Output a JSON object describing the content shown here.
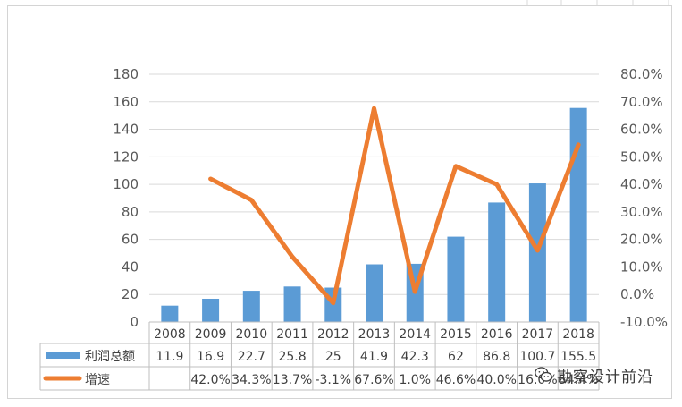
{
  "chart_data": {
    "type": "bar",
    "categories": [
      "2008",
      "2009",
      "2010",
      "2011",
      "2012",
      "2013",
      "2014",
      "2015",
      "2016",
      "2017",
      "2018"
    ],
    "series": [
      {
        "name": "利润总额",
        "type": "bar",
        "axis": "left",
        "color": "#5b9bd5",
        "values": [
          11.9,
          16.9,
          22.7,
          25.8,
          25,
          41.9,
          42.3,
          62,
          86.8,
          100.7,
          155.5
        ],
        "table_labels": [
          "11.9",
          "16.9",
          "22.7",
          "25.8",
          "25",
          "41.9",
          "42.3",
          "62",
          "86.8",
          "100.7",
          "155.5"
        ]
      },
      {
        "name": "增速",
        "type": "line",
        "axis": "right",
        "color": "#ed7d31",
        "values": [
          null,
          42.0,
          34.3,
          13.7,
          -3.1,
          67.6,
          1.0,
          46.6,
          40.0,
          16.0,
          54.4
        ],
        "table_labels": [
          "",
          "42.0%",
          "34.3%",
          "13.7%",
          "-3.1%",
          "67.6%",
          "1.0%",
          "46.6%",
          "40.0%",
          "16.0%",
          "54.4%"
        ]
      }
    ],
    "y_left": {
      "range": [
        0,
        180
      ],
      "ticks": [
        "0",
        "20",
        "40",
        "60",
        "80",
        "100",
        "120",
        "140",
        "160",
        "180"
      ]
    },
    "y_right": {
      "range": [
        -10,
        80
      ],
      "ticks": [
        "-10.0%",
        "0.0%",
        "10.0%",
        "20.0%",
        "30.0%",
        "40.0%",
        "50.0%",
        "60.0%",
        "70.0%",
        "80.0%"
      ]
    },
    "grid": true,
    "legend": "data-table",
    "title": "",
    "xlabel": "",
    "ylabel": ""
  },
  "watermark": {
    "text": "勘察设计前沿",
    "icon": "wechat-icon"
  }
}
